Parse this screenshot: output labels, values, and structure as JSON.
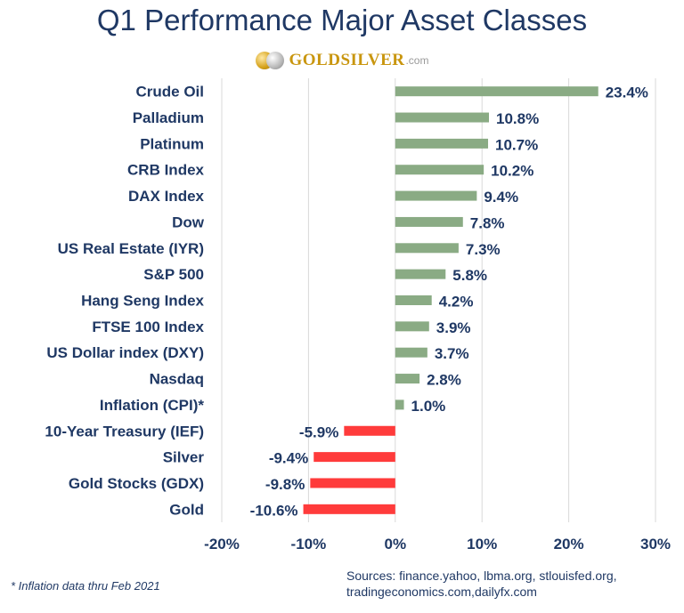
{
  "header": {
    "title": "Q1 Performance Major Asset Classes",
    "logo_text": "GOLDSILVER",
    "logo_suffix": ".com"
  },
  "chart_data": {
    "type": "bar",
    "orientation": "horizontal",
    "title": "Q1 Performance Major Asset Classes",
    "categories": [
      "Crude Oil",
      "Palladium",
      "Platinum",
      "CRB Index",
      "DAX Index",
      "Dow",
      "US Real Estate (IYR)",
      "S&P 500",
      "Hang Seng Index",
      "FTSE 100 Index",
      "US Dollar index (DXY)",
      "Nasdaq",
      "Inflation (CPI)*",
      "10-Year Treasury (IEF)",
      "Silver",
      "Gold Stocks (GDX)",
      "Gold"
    ],
    "values": [
      23.4,
      10.8,
      10.7,
      10.2,
      9.4,
      7.8,
      7.3,
      5.8,
      4.2,
      3.9,
      3.7,
      2.8,
      1.0,
      -5.9,
      -9.4,
      -9.8,
      -10.6
    ],
    "data_labels": [
      "23.4%",
      "10.8%",
      "10.7%",
      "10.2%",
      "9.4%",
      "7.8%",
      "7.3%",
      "5.8%",
      "4.2%",
      "3.9%",
      "3.7%",
      "2.8%",
      "1.0%",
      "-5.9%",
      "-9.4%",
      "-9.8%",
      "-10.6%"
    ],
    "xlim": [
      -20,
      30
    ],
    "xticks": [
      -20,
      -10,
      0,
      10,
      20,
      30
    ],
    "xtick_labels": [
      "-20%",
      "-10%",
      "0%",
      "10%",
      "20%",
      "30%"
    ],
    "grid": true,
    "colors": {
      "positive": "#8aab84",
      "negative": "#ff3b3b",
      "label": "#1f3864",
      "grid": "#d9d9d9"
    }
  },
  "footer": {
    "footnote": "* Inflation data thru Feb 2021",
    "sources_line1": "Sources: finance.yahoo, lbma.org, stlouisfed.org,",
    "sources_line2": "tradingeconomics.com,dailyfx.com"
  }
}
